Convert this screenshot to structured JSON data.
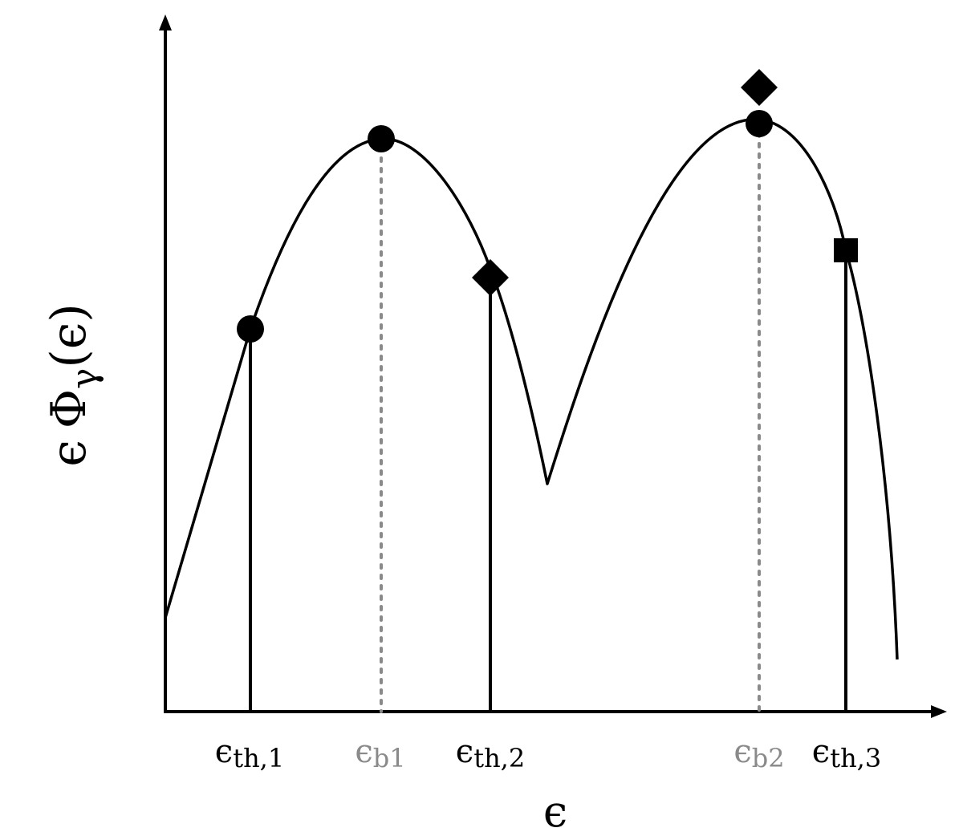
{
  "diagram": {
    "y_axis_label": {
      "eps1": "ϵ",
      "phi": "Φ",
      "sub": "γ",
      "open": "(",
      "eps2": "ϵ",
      "close": ")"
    },
    "x_axis_label": "ϵ",
    "x_markers": [
      {
        "id": "th1",
        "base": "ϵ",
        "sub": "th,1",
        "style": "solid",
        "color": "#000000"
      },
      {
        "id": "b1",
        "base": "ϵ",
        "sub": "b1",
        "style": "dotted",
        "color": "#8a8a8a"
      },
      {
        "id": "th2",
        "base": "ϵ",
        "sub": "th,2",
        "style": "solid",
        "color": "#000000"
      },
      {
        "id": "b2",
        "base": "ϵ",
        "sub": "b2",
        "style": "dotted",
        "color": "#8a8a8a"
      },
      {
        "id": "th3",
        "base": "ϵ",
        "sub": "th,3",
        "style": "solid",
        "color": "#000000"
      }
    ],
    "markers": [
      {
        "id": "circle-th1",
        "shape": "circle"
      },
      {
        "id": "circle-b1",
        "shape": "circle"
      },
      {
        "id": "diamond-th2",
        "shape": "diamond"
      },
      {
        "id": "circle-b2",
        "shape": "circle"
      },
      {
        "id": "diamond-b2",
        "shape": "diamond"
      },
      {
        "id": "square-th3",
        "shape": "square"
      }
    ],
    "colors": {
      "ink": "#000000",
      "dotted": "#8a8a8a",
      "background": "#ffffff"
    }
  }
}
